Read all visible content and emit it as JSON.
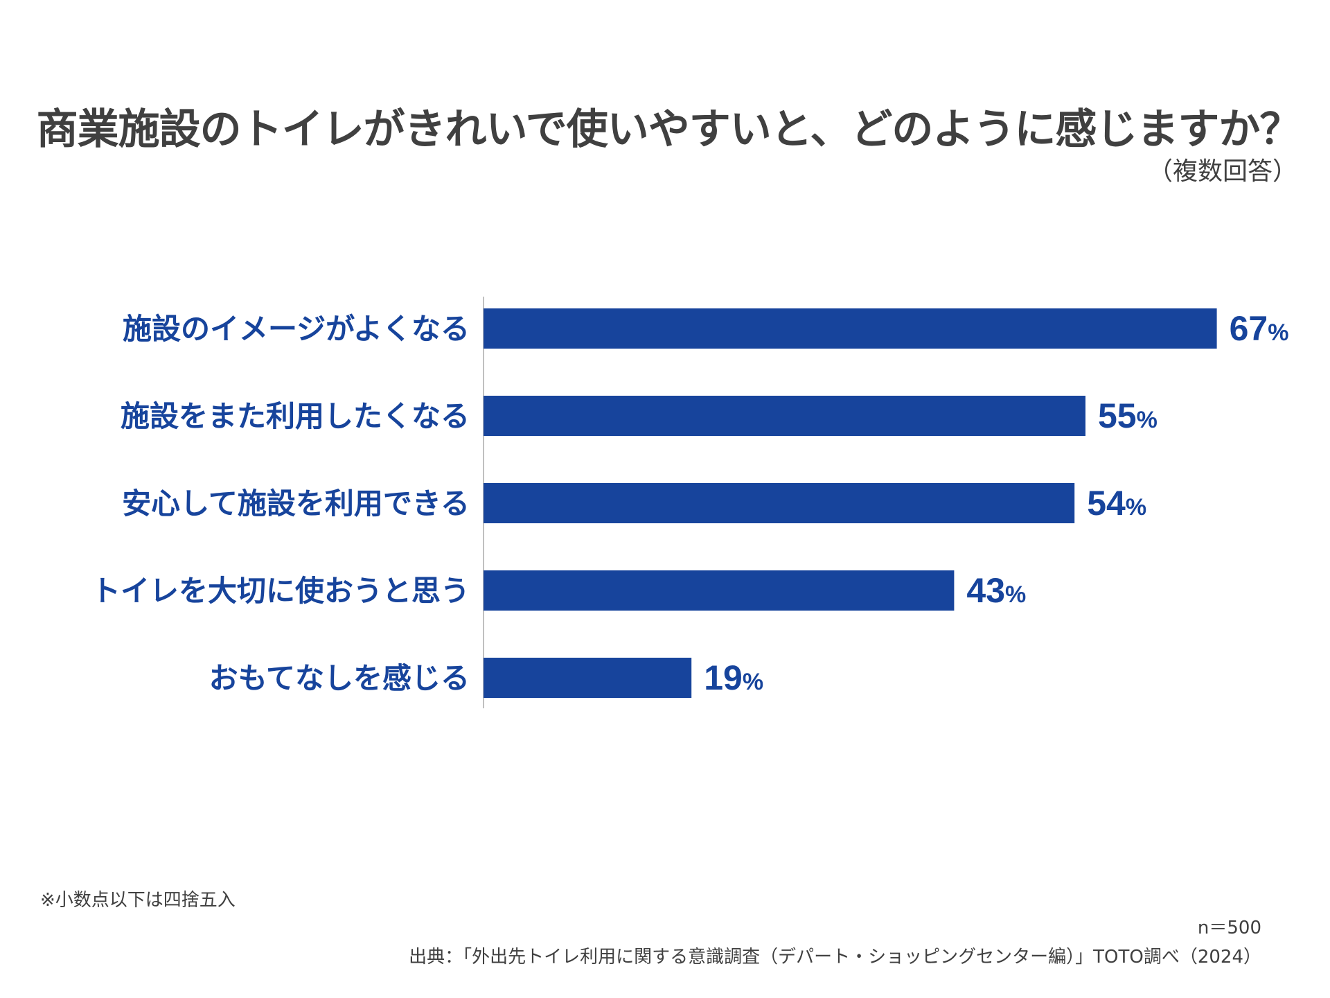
{
  "title": "商業施設のトイレがきれいで使いやすいと、どのように感じますか？",
  "subtitle": "（複数回答）",
  "chart_data": {
    "type": "bar",
    "orientation": "horizontal",
    "categories": [
      "施設のイメージがよくなる",
      "施設をまた利用したくなる",
      "安心して施設を利用できる",
      "トイレを大切に使おうと思う",
      "おもてなしを感じる"
    ],
    "values": [
      67,
      55,
      54,
      43,
      19
    ],
    "value_suffix": "%",
    "xlim": [
      0,
      100
    ],
    "grid": false,
    "bar_color": "#17449c",
    "label_color": "#17449c"
  },
  "footnote": "※小数点以下は四捨五入",
  "sample_size": "n＝500",
  "source": "出典：「外出先トイレ利用に関する意識調査（デパート・ショッピングセンター編）」TOTO調べ（2024）",
  "colors": {
    "text": "#404040",
    "axis": "#c0c0c0"
  }
}
